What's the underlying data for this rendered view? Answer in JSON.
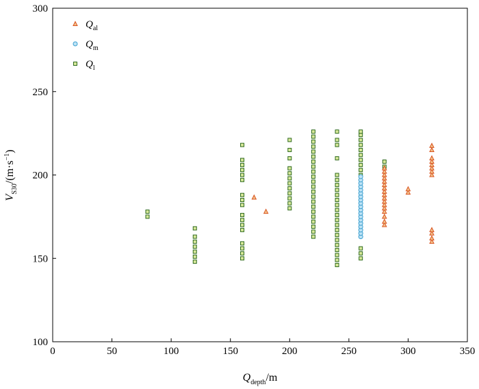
{
  "chart_data": {
    "type": "scatter",
    "xlabel": {
      "main": "Q",
      "sub": "depth",
      "suffix": "/m"
    },
    "ylabel": {
      "main": "V",
      "sub": "S30",
      "suffix": "/(m·s",
      "sup": "−1",
      "close": ")"
    },
    "xlim": [
      0,
      350
    ],
    "ylim": [
      100,
      300
    ],
    "xticks": [
      0,
      50,
      100,
      150,
      200,
      250,
      300,
      350
    ],
    "yticks": [
      100,
      150,
      200,
      250,
      300
    ],
    "legend_position": "top-left",
    "series": [
      {
        "name": "Q",
        "sub": "al",
        "marker": "triangle",
        "fill": "#f2c48d",
        "stroke": "#d9531e",
        "points": [
          [
            170,
            186.5
          ],
          [
            180,
            178
          ],
          [
            280,
            170
          ],
          [
            280,
            172
          ],
          [
            280,
            175
          ],
          [
            280,
            178
          ],
          [
            280,
            180
          ],
          [
            280,
            182
          ],
          [
            280,
            184
          ],
          [
            280,
            186
          ],
          [
            280,
            188
          ],
          [
            280,
            190
          ],
          [
            280,
            192
          ],
          [
            280,
            194
          ],
          [
            280,
            196
          ],
          [
            280,
            198
          ],
          [
            280,
            200
          ],
          [
            280,
            202
          ],
          [
            280,
            204
          ],
          [
            300,
            189.5
          ],
          [
            300,
            191.5
          ],
          [
            320,
            160
          ],
          [
            320,
            162
          ],
          [
            320,
            165
          ],
          [
            320,
            167
          ],
          [
            320,
            200
          ],
          [
            320,
            202
          ],
          [
            320,
            204
          ],
          [
            320,
            206
          ],
          [
            320,
            208
          ],
          [
            320,
            210
          ],
          [
            320,
            215
          ],
          [
            320,
            217.5
          ]
        ]
      },
      {
        "name": "Q",
        "sub": "m",
        "marker": "circle",
        "fill": "#bfe3f5",
        "stroke": "#3a9fd0",
        "points": [
          [
            260,
            163
          ],
          [
            260,
            165
          ],
          [
            260,
            167
          ],
          [
            260,
            169
          ],
          [
            260,
            171
          ],
          [
            260,
            173
          ],
          [
            260,
            175
          ],
          [
            260,
            177
          ],
          [
            260,
            179
          ],
          [
            260,
            181
          ],
          [
            260,
            183
          ],
          [
            260,
            185
          ],
          [
            260,
            187
          ],
          [
            260,
            189
          ],
          [
            260,
            191
          ],
          [
            260,
            193
          ],
          [
            260,
            195
          ],
          [
            260,
            197
          ],
          [
            260,
            199
          ]
        ]
      },
      {
        "name": "Q",
        "sub": "l",
        "marker": "square",
        "fill": "#d8e89a",
        "stroke": "#2e6a1e",
        "points": [
          [
            80,
            175
          ],
          [
            80,
            178
          ],
          [
            120,
            148
          ],
          [
            120,
            151
          ],
          [
            120,
            154
          ],
          [
            120,
            157
          ],
          [
            120,
            160
          ],
          [
            120,
            163
          ],
          [
            120,
            168
          ],
          [
            160,
            150
          ],
          [
            160,
            153
          ],
          [
            160,
            156
          ],
          [
            160,
            159
          ],
          [
            160,
            167
          ],
          [
            160,
            170
          ],
          [
            160,
            173
          ],
          [
            160,
            176
          ],
          [
            160,
            182
          ],
          [
            160,
            185
          ],
          [
            160,
            188
          ],
          [
            160,
            197
          ],
          [
            160,
            200
          ],
          [
            160,
            203
          ],
          [
            160,
            206
          ],
          [
            160,
            209
          ],
          [
            160,
            218
          ],
          [
            200,
            180
          ],
          [
            200,
            183
          ],
          [
            200,
            186
          ],
          [
            200,
            189
          ],
          [
            200,
            192
          ],
          [
            200,
            195
          ],
          [
            200,
            198
          ],
          [
            200,
            201
          ],
          [
            200,
            204
          ],
          [
            200,
            210
          ],
          [
            200,
            215
          ],
          [
            200,
            221
          ],
          [
            220,
            163
          ],
          [
            220,
            166
          ],
          [
            220,
            169
          ],
          [
            220,
            172
          ],
          [
            220,
            175
          ],
          [
            220,
            178
          ],
          [
            220,
            181
          ],
          [
            220,
            184
          ],
          [
            220,
            187
          ],
          [
            220,
            190
          ],
          [
            220,
            193
          ],
          [
            220,
            196
          ],
          [
            220,
            199
          ],
          [
            220,
            202
          ],
          [
            220,
            205
          ],
          [
            220,
            208
          ],
          [
            220,
            211
          ],
          [
            220,
            214
          ],
          [
            220,
            217
          ],
          [
            220,
            220
          ],
          [
            220,
            223
          ],
          [
            220,
            226
          ],
          [
            240,
            146
          ],
          [
            240,
            149
          ],
          [
            240,
            152
          ],
          [
            240,
            155
          ],
          [
            240,
            158
          ],
          [
            240,
            161
          ],
          [
            240,
            164
          ],
          [
            240,
            167
          ],
          [
            240,
            170
          ],
          [
            240,
            173
          ],
          [
            240,
            176
          ],
          [
            240,
            179
          ],
          [
            240,
            182
          ],
          [
            240,
            185
          ],
          [
            240,
            188
          ],
          [
            240,
            191
          ],
          [
            240,
            194
          ],
          [
            240,
            197
          ],
          [
            240,
            200
          ],
          [
            240,
            210
          ],
          [
            240,
            218
          ],
          [
            240,
            221
          ],
          [
            240,
            226
          ],
          [
            260,
            150
          ],
          [
            260,
            153
          ],
          [
            260,
            156
          ],
          [
            260,
            200
          ],
          [
            260,
            203
          ],
          [
            260,
            206
          ],
          [
            260,
            209
          ],
          [
            260,
            212
          ],
          [
            260,
            215
          ],
          [
            260,
            218
          ],
          [
            260,
            221
          ],
          [
            260,
            224
          ],
          [
            260,
            226
          ],
          [
            280,
            205
          ],
          [
            280,
            208
          ]
        ]
      }
    ]
  }
}
